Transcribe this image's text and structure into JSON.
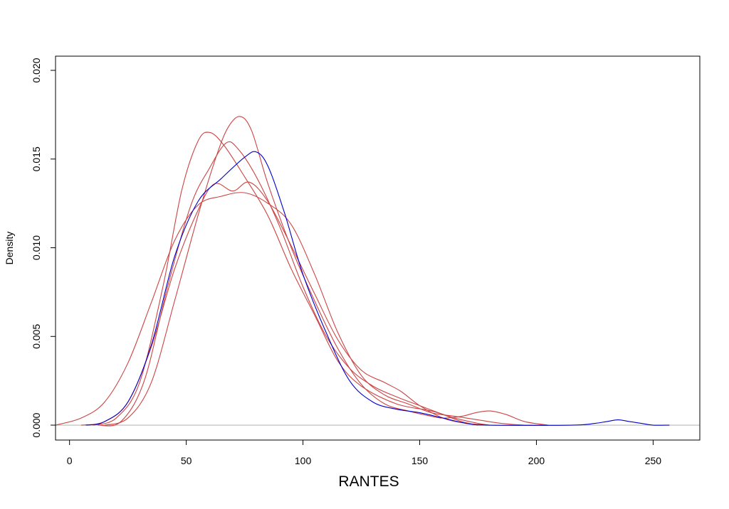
{
  "chart_data": {
    "type": "line",
    "title": "",
    "xlabel": "RANTES",
    "ylabel": "Density",
    "xlim": [
      -6,
      270
    ],
    "ylim": [
      -0.00084,
      0.0208
    ],
    "x_ticks": [
      0,
      50,
      100,
      150,
      200,
      250
    ],
    "x_tick_labels": [
      "0",
      "50",
      "100",
      "150",
      "200",
      "250"
    ],
    "y_ticks": [
      0.0,
      0.005,
      0.01,
      0.015,
      0.02
    ],
    "y_tick_labels": [
      "0.000",
      "0.005",
      "0.010",
      "0.015",
      "0.020"
    ],
    "grid": false,
    "baseline": {
      "y": 0,
      "color": "#bbbbbb"
    },
    "colors": {
      "blue_series": "#0000cc",
      "red_series": "#cc4444",
      "frame": "#000000"
    },
    "series": [
      {
        "color": "#0000cc",
        "points": [
          [
            7,
            0
          ],
          [
            15,
            0.0002
          ],
          [
            25,
            0.0013
          ],
          [
            35,
            0.0045
          ],
          [
            45,
            0.0095
          ],
          [
            55,
            0.0126
          ],
          [
            65,
            0.0139
          ],
          [
            75,
            0.0151
          ],
          [
            80,
            0.0154
          ],
          [
            85,
            0.0146
          ],
          [
            92,
            0.012
          ],
          [
            100,
            0.0085
          ],
          [
            110,
            0.0052
          ],
          [
            120,
            0.0025
          ],
          [
            130,
            0.0013
          ],
          [
            140,
            0.0009
          ],
          [
            150,
            0.0007
          ],
          [
            160,
            0.0004
          ],
          [
            170,
            0.0001
          ],
          [
            180,
            0
          ],
          [
            215,
            0
          ],
          [
            225,
            0.0001
          ],
          [
            230,
            0.0002
          ],
          [
            235,
            0.0003
          ],
          [
            240,
            0.0002
          ],
          [
            245,
            0.0001
          ],
          [
            250,
            0
          ],
          [
            257,
            0
          ]
        ]
      },
      {
        "color": "#cc4444",
        "points": [
          [
            -6,
            0
          ],
          [
            5,
            0.0004
          ],
          [
            15,
            0.0013
          ],
          [
            25,
            0.0035
          ],
          [
            35,
            0.0069
          ],
          [
            45,
            0.0104
          ],
          [
            55,
            0.0124
          ],
          [
            65,
            0.0129
          ],
          [
            75,
            0.0131
          ],
          [
            85,
            0.0125
          ],
          [
            95,
            0.0113
          ],
          [
            105,
            0.0085
          ],
          [
            115,
            0.0052
          ],
          [
            125,
            0.0028
          ],
          [
            135,
            0.0017
          ],
          [
            145,
            0.0012
          ],
          [
            155,
            0.0007
          ],
          [
            165,
            0.0005
          ],
          [
            175,
            0.0003
          ],
          [
            185,
            0.0001
          ],
          [
            195,
            0
          ],
          [
            205,
            0
          ]
        ]
      },
      {
        "color": "#cc4444",
        "points": [
          [
            10,
            0
          ],
          [
            20,
            0.0004
          ],
          [
            30,
            0.0024
          ],
          [
            40,
            0.0078
          ],
          [
            48,
            0.0132
          ],
          [
            55,
            0.016
          ],
          [
            60,
            0.0165
          ],
          [
            66,
            0.0158
          ],
          [
            75,
            0.014
          ],
          [
            85,
            0.0118
          ],
          [
            95,
            0.0088
          ],
          [
            105,
            0.0062
          ],
          [
            115,
            0.0036
          ],
          [
            125,
            0.0022
          ],
          [
            140,
            0.0012
          ],
          [
            155,
            0.0008
          ],
          [
            165,
            0.0004
          ],
          [
            175,
            0.0001
          ],
          [
            180,
            0
          ]
        ]
      },
      {
        "color": "#cc4444",
        "points": [
          [
            12,
            0
          ],
          [
            22,
            0.0002
          ],
          [
            32,
            0.0025
          ],
          [
            42,
            0.0078
          ],
          [
            52,
            0.0124
          ],
          [
            60,
            0.0145
          ],
          [
            67,
            0.0159
          ],
          [
            72,
            0.0156
          ],
          [
            80,
            0.014
          ],
          [
            90,
            0.0112
          ],
          [
            100,
            0.0078
          ],
          [
            110,
            0.005
          ],
          [
            120,
            0.0032
          ],
          [
            130,
            0.0022
          ],
          [
            140,
            0.0016
          ],
          [
            150,
            0.0011
          ],
          [
            160,
            0.0006
          ],
          [
            168,
            0.0002
          ],
          [
            175,
            0
          ]
        ]
      },
      {
        "color": "#cc4444",
        "points": [
          [
            15,
            0
          ],
          [
            25,
            0.0004
          ],
          [
            35,
            0.0024
          ],
          [
            45,
            0.007
          ],
          [
            55,
            0.0118
          ],
          [
            63,
            0.0152
          ],
          [
            68,
            0.0168
          ],
          [
            73,
            0.0174
          ],
          [
            78,
            0.0166
          ],
          [
            85,
            0.0136
          ],
          [
            95,
            0.01
          ],
          [
            105,
            0.007
          ],
          [
            115,
            0.0043
          ],
          [
            125,
            0.0023
          ],
          [
            135,
            0.0012
          ],
          [
            145,
            0.0008
          ],
          [
            155,
            0.0005
          ],
          [
            160,
            0.0004
          ],
          [
            168,
            0.0005
          ],
          [
            174,
            0.0007
          ],
          [
            180,
            0.0008
          ],
          [
            187,
            0.0006
          ],
          [
            195,
            0.0002
          ],
          [
            205,
            0
          ]
        ]
      },
      {
        "color": "#cc4444",
        "points": [
          [
            5,
            0
          ],
          [
            15,
            0.0002
          ],
          [
            25,
            0.0013
          ],
          [
            35,
            0.0044
          ],
          [
            45,
            0.0088
          ],
          [
            55,
            0.0121
          ],
          [
            62,
            0.0136
          ],
          [
            70,
            0.0132
          ],
          [
            77,
            0.0137
          ],
          [
            85,
            0.0126
          ],
          [
            95,
            0.0101
          ],
          [
            105,
            0.0074
          ],
          [
            115,
            0.0048
          ],
          [
            125,
            0.0031
          ],
          [
            135,
            0.0024
          ],
          [
            142,
            0.0019
          ],
          [
            150,
            0.0011
          ],
          [
            160,
            0.0004
          ],
          [
            170,
            0.0001
          ],
          [
            180,
            0
          ]
        ]
      }
    ]
  }
}
